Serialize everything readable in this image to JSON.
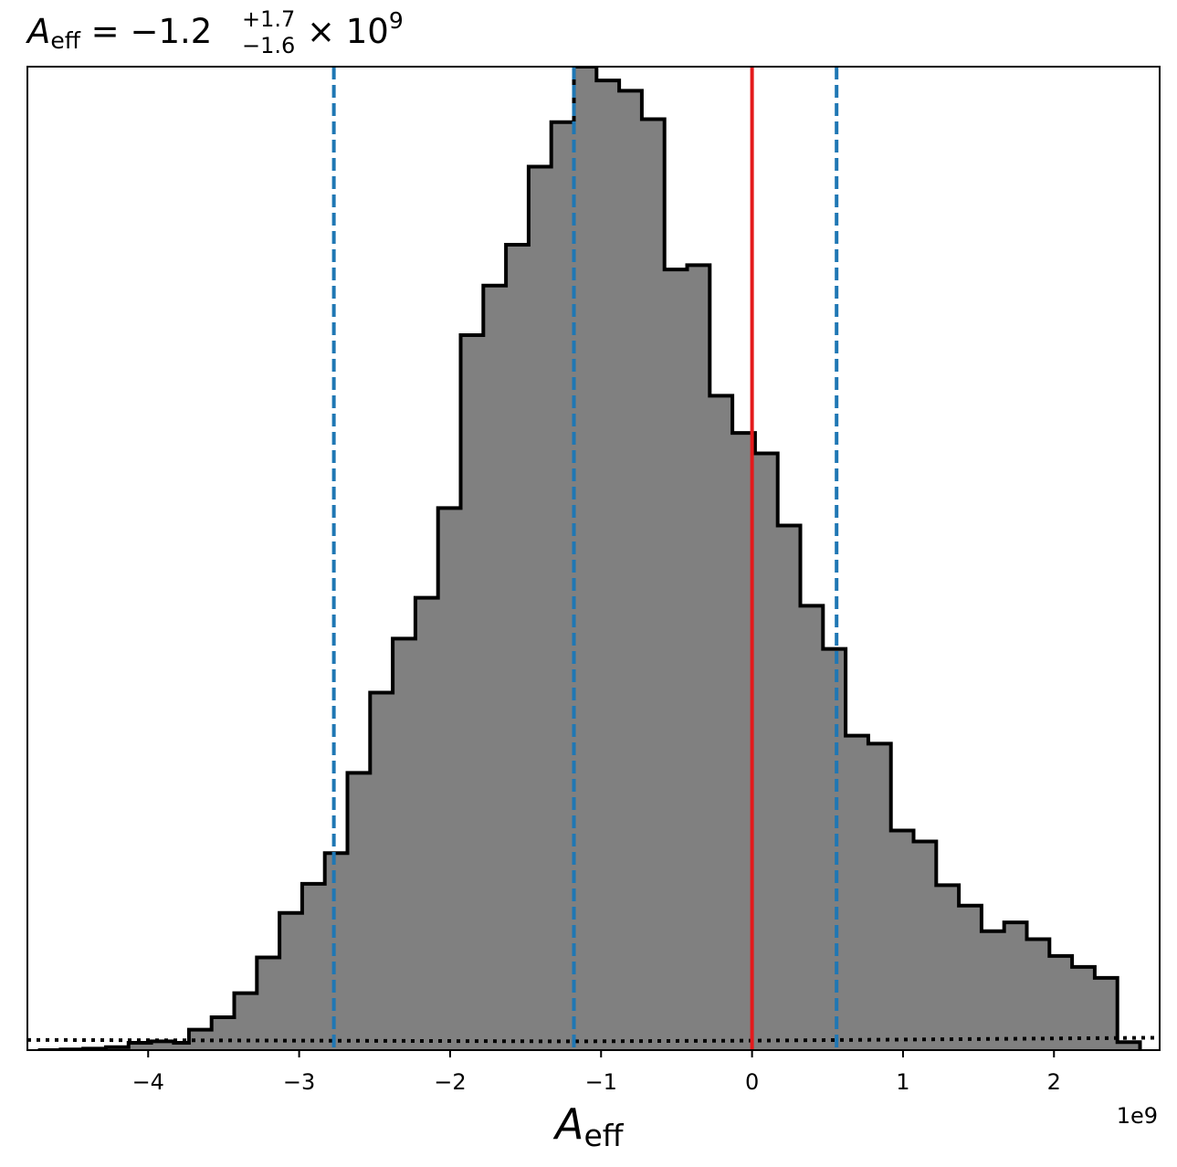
{
  "chart_data": {
    "type": "bar",
    "title": {
      "symbol": "A",
      "symbol_sub": "eff",
      "equals": " = ",
      "value": "−1.2",
      "upper": "+1.7",
      "lower": "−1.6",
      "times": " × 10",
      "exponent": "9"
    },
    "xlabel": {
      "symbol": "A",
      "sub": "eff"
    },
    "offset_text": "1e9",
    "x_scale_exponent": 9,
    "xlim": [
      -4.8,
      2.7
    ],
    "ylim": [
      0,
      1.0
    ],
    "x_ticks": [
      -4,
      -3,
      -2,
      -1,
      0,
      1,
      2
    ],
    "x_tick_labels": [
      "−4",
      "−3",
      "−2",
      "−1",
      "0",
      "1",
      "2"
    ],
    "histogram": {
      "bin_edges": [
        -4.73,
        -4.58,
        -4.43,
        -4.28,
        -4.13,
        -3.98,
        -3.83,
        -3.73,
        -3.58,
        -3.43,
        -3.28,
        -3.13,
        -2.98,
        -2.83,
        -2.68,
        -2.53,
        -2.38,
        -2.23,
        -2.08,
        -1.93,
        -1.78,
        -1.63,
        -1.48,
        -1.33,
        -1.18,
        -1.03,
        -0.88,
        -0.73,
        -0.58,
        -0.43,
        -0.28,
        -0.13,
        0.02,
        0.17,
        0.32,
        0.47,
        0.62,
        0.77,
        0.92,
        1.07,
        1.22,
        1.37,
        1.52,
        1.67,
        1.82,
        1.97,
        2.12,
        2.27,
        2.42,
        2.57
      ],
      "counts": [
        0.0,
        0.001,
        0.002,
        0.004,
        0.01,
        0.012,
        0.01,
        0.028,
        0.045,
        0.078,
        0.127,
        0.188,
        0.228,
        0.27,
        0.38,
        0.49,
        0.564,
        0.62,
        0.743,
        0.98,
        1.048,
        1.104,
        1.211,
        1.272,
        1.348,
        1.329,
        1.315,
        1.276,
        1.07,
        1.076,
        0.897,
        0.846,
        0.818,
        0.719,
        0.609,
        0.55,
        0.431,
        0.42,
        0.301,
        0.286,
        0.226,
        0.198,
        0.163,
        0.175,
        0.152,
        0.129,
        0.114,
        0.099,
        0.011
      ],
      "fill_color": "#808080",
      "edge_color": "#000000"
    },
    "vlines": [
      {
        "x": -2.77,
        "style": "dashed",
        "color": "#1f77b4"
      },
      {
        "x": -1.18,
        "style": "dashed",
        "color": "#1f77b4"
      },
      {
        "x": 0.56,
        "style": "dashed",
        "color": "#1f77b4"
      },
      {
        "x": 0.0,
        "style": "solid",
        "color": "#e41a1c"
      }
    ],
    "prior_line": {
      "style": "dotted",
      "color": "#000000",
      "points": [
        [
          -4.8,
          0.014
        ],
        [
          -1.2,
          0.012
        ],
        [
          0.0,
          0.013
        ],
        [
          2.7,
          0.017
        ]
      ]
    },
    "grid": false,
    "legend": null
  }
}
